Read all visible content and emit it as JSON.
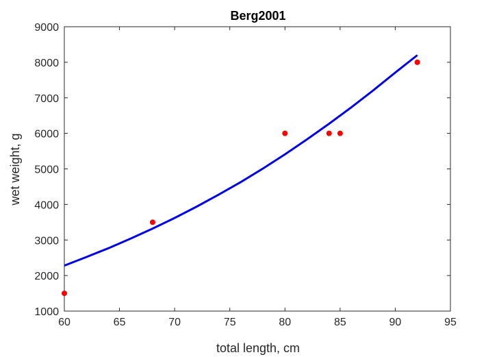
{
  "chart_data": {
    "type": "scatter",
    "title": "Berg2001",
    "xlabel": "total length, cm",
    "ylabel": "wet weight, g",
    "xlim": [
      60,
      95
    ],
    "ylim": [
      1000,
      9000
    ],
    "xticks": [
      60,
      65,
      70,
      75,
      80,
      85,
      90,
      95
    ],
    "yticks": [
      1000,
      2000,
      3000,
      4000,
      5000,
      6000,
      7000,
      8000,
      9000
    ],
    "grid": false,
    "points": {
      "color": "#ff0000",
      "x": [
        60,
        68,
        80,
        84,
        85,
        92
      ],
      "y": [
        1500,
        3500,
        6000,
        6000,
        6000,
        8000
      ]
    },
    "fit_line": {
      "color": "#0000ee",
      "x": [
        60,
        62,
        64,
        66,
        68,
        70,
        72,
        74,
        76,
        78,
        80,
        82,
        84,
        86,
        88,
        90,
        92
      ],
      "y": [
        2280,
        2520,
        2770,
        3040,
        3320,
        3620,
        3940,
        4280,
        4630,
        5010,
        5410,
        5830,
        6270,
        6730,
        7210,
        7710,
        8200
      ]
    }
  }
}
